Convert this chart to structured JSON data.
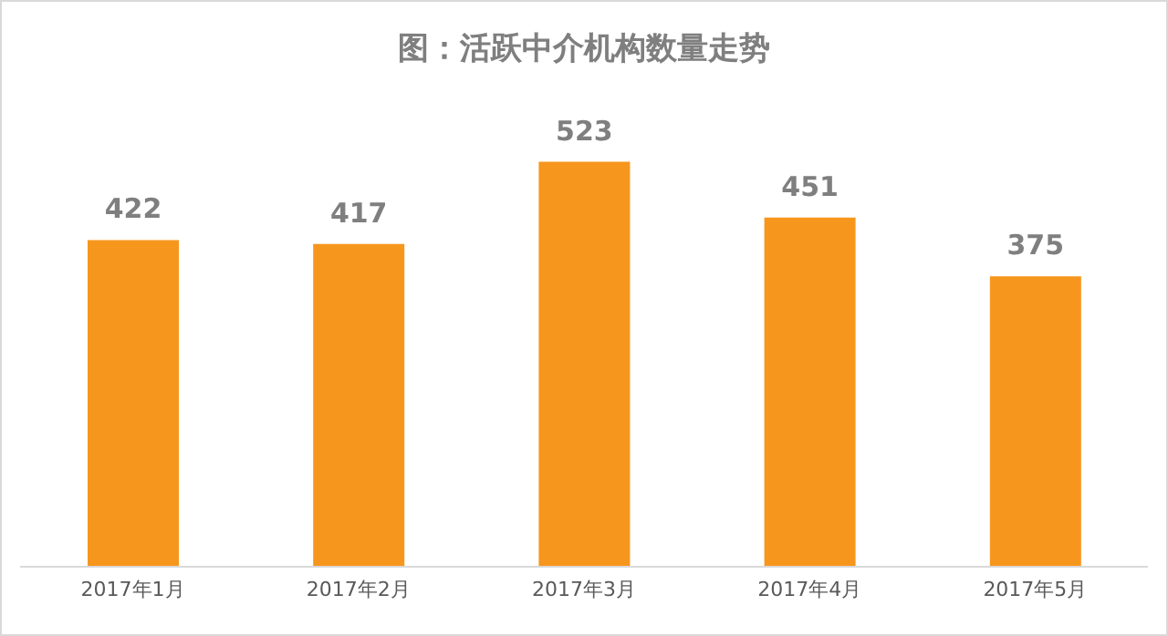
{
  "chart_data": {
    "type": "bar",
    "title": "图：活跃中介机构数量走势",
    "categories": [
      "2017年1月",
      "2017年2月",
      "2017年3月",
      "2017年4月",
      "2017年5月"
    ],
    "values": [
      422,
      417,
      523,
      451,
      375
    ],
    "color": "#f7961d",
    "data_labels": true
  }
}
